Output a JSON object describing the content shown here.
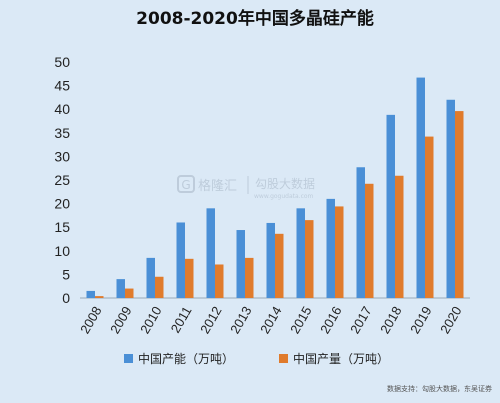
{
  "chart_data": {
    "type": "bar",
    "title": "2008-2020年中国多晶硅产能",
    "categories": [
      "2008",
      "2009",
      "2010",
      "2011",
      "2012",
      "2013",
      "2014",
      "2015",
      "2016",
      "2017",
      "2018",
      "2019",
      "2020"
    ],
    "series": [
      {
        "name": "中国产能（万吨）",
        "color": "#4a8fd6",
        "values": [
          1.5,
          4.0,
          8.5,
          16.0,
          19.0,
          14.4,
          15.9,
          19.0,
          21.0,
          27.7,
          38.8,
          46.7,
          42.0
        ]
      },
      {
        "name": "中国产量（万吨）",
        "color": "#e07b2c",
        "values": [
          0.4,
          2.0,
          4.5,
          8.3,
          7.1,
          8.5,
          13.6,
          16.5,
          19.4,
          24.2,
          25.9,
          34.2,
          39.6
        ]
      }
    ],
    "ylim": [
      0,
      50
    ],
    "yticks": [
      0,
      5,
      10,
      15,
      20,
      25,
      30,
      35,
      40,
      45,
      50
    ],
    "legend_position": "bottom"
  },
  "watermark": {
    "brand": "格隆汇",
    "sub": "勾股大数据",
    "url": "www.gogudata.com"
  },
  "source_note": "数据支持：勾股大数据，东吴证券"
}
